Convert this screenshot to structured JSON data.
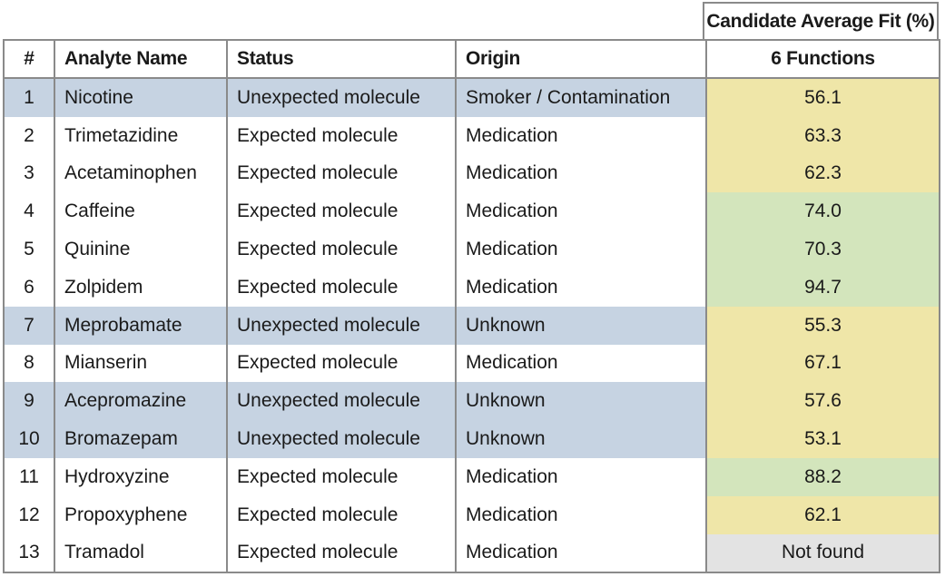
{
  "header": {
    "group_title": "Candidate Average Fit (%)",
    "col_num": "#",
    "col_name": "Analyte Name",
    "col_status": "Status",
    "col_origin": "Origin",
    "col_fit": "6 Functions"
  },
  "colors": {
    "unexpected_row": "#c6d3e2",
    "fit_yellow": "#efe6a8",
    "fit_green": "#d3e5bc",
    "fit_gray": "#e3e3e3"
  },
  "rows": [
    {
      "num": "1",
      "name": "Nicotine",
      "status": "Unexpected molecule",
      "origin": "Smoker / Contamination",
      "fit": "56.1",
      "fit_color": "yellow"
    },
    {
      "num": "2",
      "name": "Trimetazidine",
      "status": "Expected molecule",
      "origin": "Medication",
      "fit": "63.3",
      "fit_color": "yellow"
    },
    {
      "num": "3",
      "name": "Acetaminophen",
      "status": "Expected molecule",
      "origin": "Medication",
      "fit": "62.3",
      "fit_color": "yellow"
    },
    {
      "num": "4",
      "name": "Caffeine",
      "status": "Expected molecule",
      "origin": "Medication",
      "fit": "74.0",
      "fit_color": "green"
    },
    {
      "num": "5",
      "name": "Quinine",
      "status": "Expected molecule",
      "origin": "Medication",
      "fit": "70.3",
      "fit_color": "green"
    },
    {
      "num": "6",
      "name": "Zolpidem",
      "status": "Expected molecule",
      "origin": "Medication",
      "fit": "94.7",
      "fit_color": "green"
    },
    {
      "num": "7",
      "name": "Meprobamate",
      "status": "Unexpected molecule",
      "origin": "Unknown",
      "fit": "55.3",
      "fit_color": "yellow"
    },
    {
      "num": "8",
      "name": "Mianserin",
      "status": "Expected molecule",
      "origin": "Medication",
      "fit": "67.1",
      "fit_color": "yellow"
    },
    {
      "num": "9",
      "name": "Acepromazine",
      "status": "Unexpected molecule",
      "origin": "Unknown",
      "fit": "57.6",
      "fit_color": "yellow"
    },
    {
      "num": "10",
      "name": "Bromazepam",
      "status": "Unexpected molecule",
      "origin": "Unknown",
      "fit": "53.1",
      "fit_color": "yellow"
    },
    {
      "num": "11",
      "name": "Hydroxyzine",
      "status": "Expected molecule",
      "origin": "Medication",
      "fit": "88.2",
      "fit_color": "green"
    },
    {
      "num": "12",
      "name": "Propoxyphene",
      "status": "Expected molecule",
      "origin": "Medication",
      "fit": "62.1",
      "fit_color": "yellow"
    },
    {
      "num": "13",
      "name": "Tramadol",
      "status": "Expected molecule",
      "origin": "Medication",
      "fit": "Not found",
      "fit_color": "gray"
    }
  ]
}
